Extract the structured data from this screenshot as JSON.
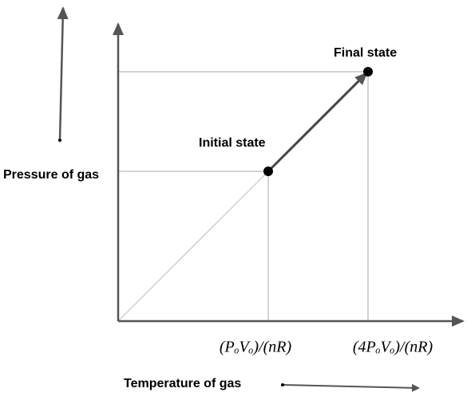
{
  "labels": {
    "initial": "Initial state",
    "final": "Final state",
    "y_axis": "Pressure of gas",
    "x_axis": "Temperature of gas"
  },
  "x_marks": [
    "(PₒVₒ)/(nR)",
    "(4PₒVₒ)/(nR)"
  ]
}
